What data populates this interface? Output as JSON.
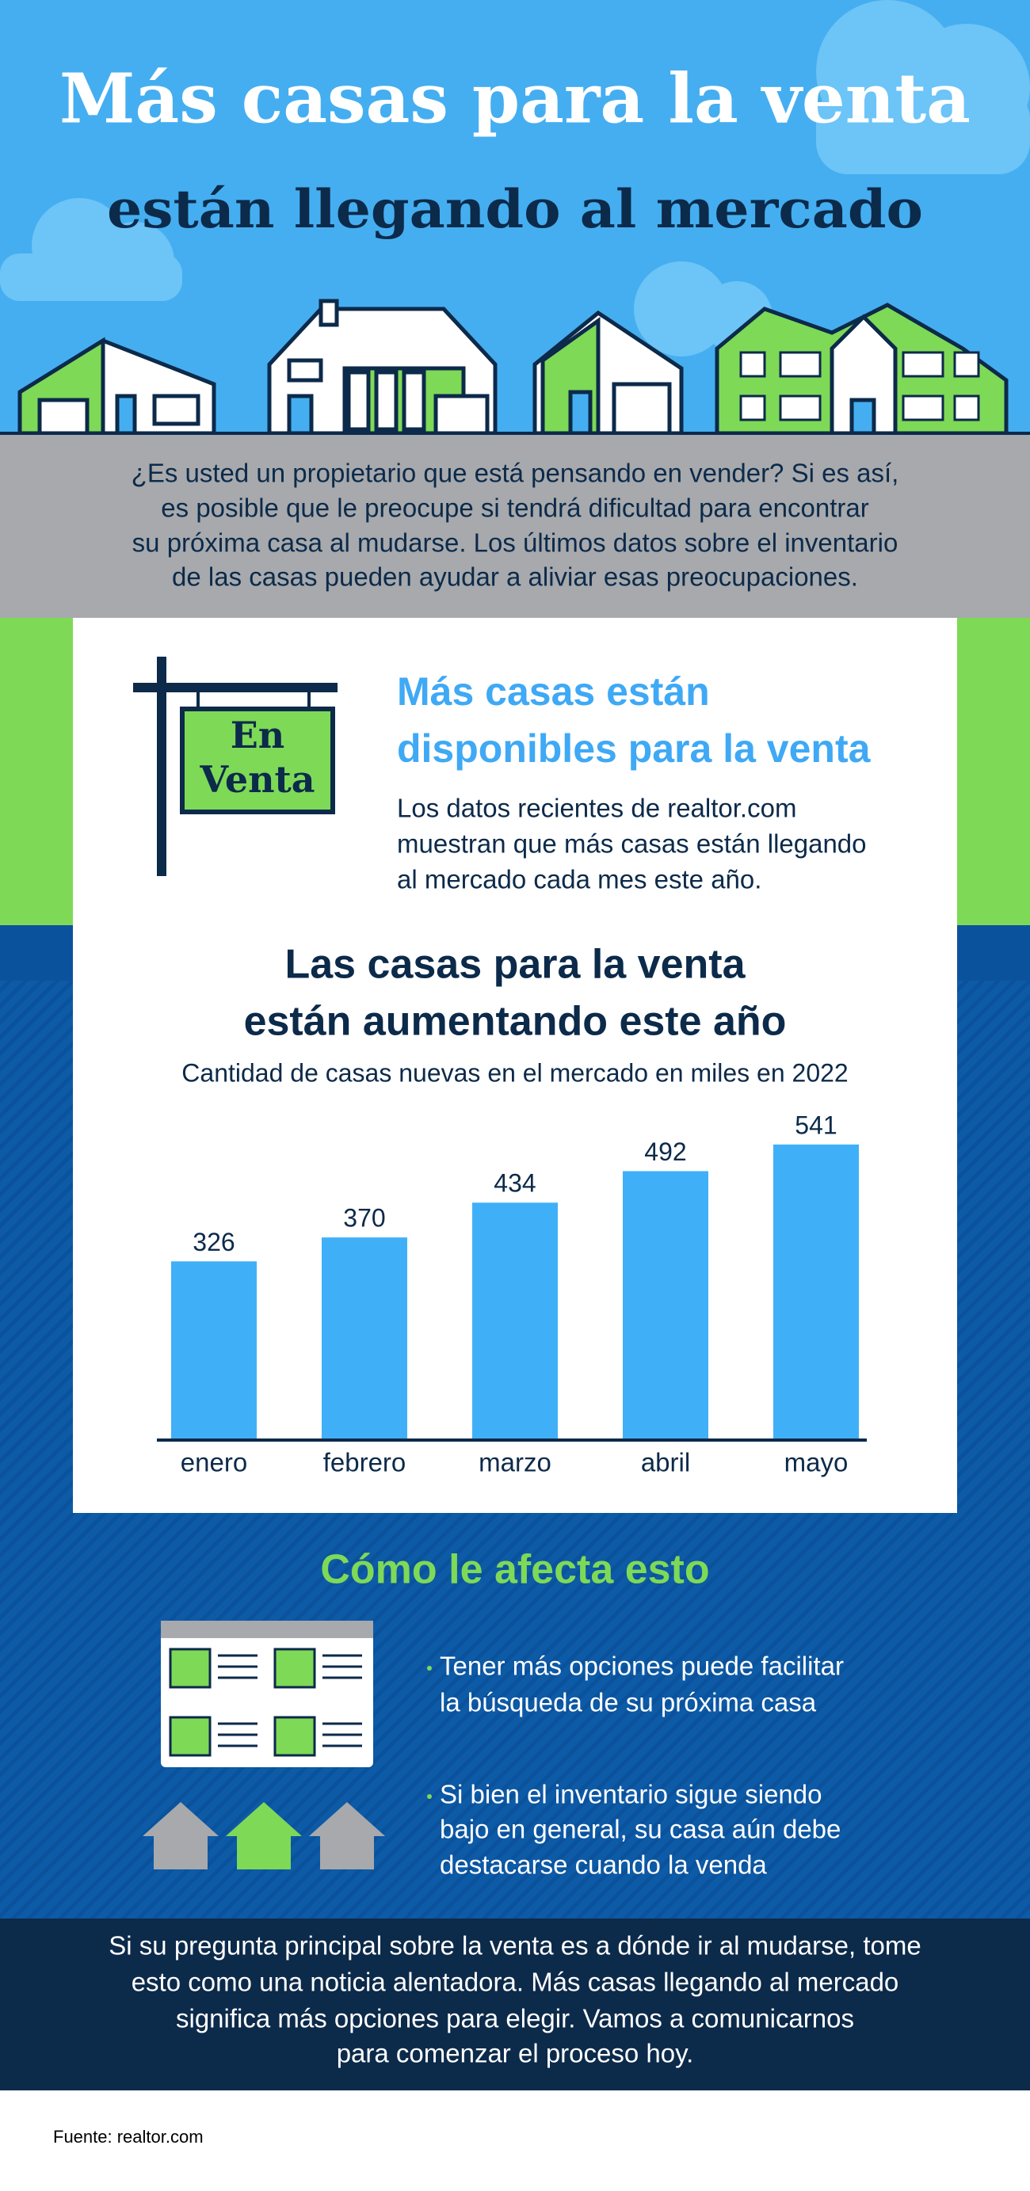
{
  "header": {
    "title": "Más casas para la venta",
    "subtitle": "están llegando al mercado"
  },
  "intro": {
    "lines": [
      "¿Es usted un propietario que está pensando en vender? Si es así,",
      "es posible que le preocupe si tendrá dificultad para encontrar",
      "su próxima casa al mudarse.  Los últimos datos sobre el inventario",
      "de las casas pueden ayudar a aliviar esas preocupaciones."
    ]
  },
  "sign": {
    "lines": [
      "En",
      "Venta"
    ]
  },
  "section1": {
    "heading": [
      "Más casas están",
      "disponibles para la venta"
    ],
    "body": [
      "Los datos recientes de realtor.com",
      "muestran que más casas están llegando",
      "al mercado  cada mes este año."
    ]
  },
  "chart_data": {
    "type": "bar",
    "title": [
      "Las casas para la venta",
      "están aumentando este año"
    ],
    "subtitle": "Cantidad de casas nuevas en el mercado en miles en 2022",
    "categories": [
      "enero",
      "febrero",
      "marzo",
      "abril",
      "mayo"
    ],
    "values": [
      326,
      370,
      434,
      492,
      541
    ],
    "color": "#3fb0f8"
  },
  "section2": {
    "heading": "Cómo le afecta esto",
    "bullets": [
      [
        "Tener más opciones puede facilitar",
        "la búsqueda de su próxima casa"
      ],
      [
        "Si bien el inventario sigue siendo",
        "bajo en general, su casa aún debe",
        "destacarse cuando la venda"
      ]
    ]
  },
  "closing": {
    "lines": [
      "Si su pregunta principal sobre la venta es a dónde ir al mudarse, tome",
      "esto como una noticia alentadora. Más casas llegando al mercado",
      "significa más opciones para elegir. Vamos a comunicarnos",
      "para comenzar el proceso hoy."
    ]
  },
  "footer": {
    "source": "Fuente: realtor.com"
  }
}
